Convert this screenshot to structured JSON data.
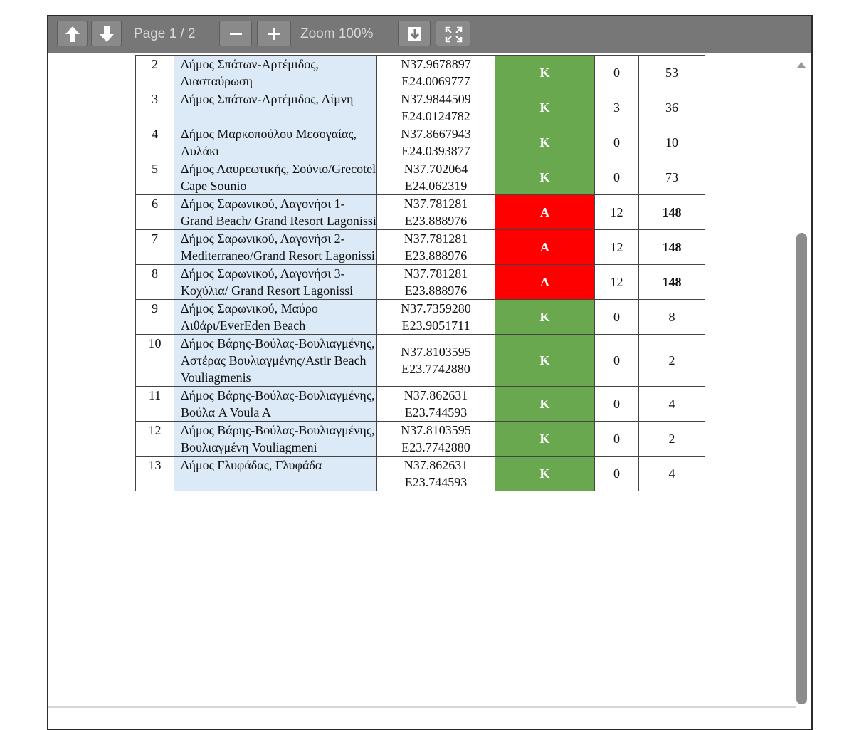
{
  "toolbar": {
    "page_label": "Page 1 / 2",
    "zoom_label": "Zoom 100%"
  },
  "table": {
    "rows": [
      {
        "num": 2,
        "name": "Δήμος Σπάτων-Αρτέμιδος, Διασταύρωση",
        "coords": [
          "N37.9678897",
          "E24.0069777"
        ],
        "status": "Κ",
        "color": "#6aa84f",
        "count": 0,
        "value": 53
      },
      {
        "num": 3,
        "name": "Δήμος Σπάτων-Αρτέμιδος, Λίμνη",
        "coords": [
          "N37.9844509",
          "E24.0124782"
        ],
        "status": "Κ",
        "color": "#6aa84f",
        "count": 3,
        "value": 36
      },
      {
        "num": 4,
        "name": "Δήμος Μαρκοπούλου Μεσογαίας, Αυλάκι",
        "coords": [
          "N37.8667943",
          "E24.0393877"
        ],
        "status": "Κ",
        "color": "#6aa84f",
        "count": 0,
        "value": 10
      },
      {
        "num": 5,
        "name": "Δήμος Λαυρεωτικής, Σούνιο/Grecotel Cape Sounio",
        "coords": [
          "N37.702064",
          "E24.062319"
        ],
        "status": "Κ",
        "color": "#6aa84f",
        "count": 0,
        "value": 73
      },
      {
        "num": 6,
        "name": "Δήμος Σαρωνικού, Λαγονήσι 1-Grand Beach/ Grand Resort Lagonissi",
        "coords": [
          "N37.781281",
          "E23.888976"
        ],
        "status": "Α",
        "color": "#ff0000",
        "count": 12,
        "value": 148,
        "bold": true
      },
      {
        "num": 7,
        "name": "Δήμος Σαρωνικού, Λαγονήσι 2-Mediterraneo/Grand Resort Lagonissi",
        "coords": [
          "N37.781281",
          "E23.888976"
        ],
        "status": "Α",
        "color": "#ff0000",
        "count": 12,
        "value": 148,
        "bold": true
      },
      {
        "num": 8,
        "name": "Δήμος Σαρωνικού, Λαγονήσι 3-Κοχύλια/ Grand Resort Lagonissi",
        "coords": [
          "N37.781281",
          "E23.888976"
        ],
        "status": "Α",
        "color": "#ff0000",
        "count": 12,
        "value": 148,
        "bold": true
      },
      {
        "num": 9,
        "name": "Δήμος Σαρωνικού, Μαύρο Λιθάρι/EverEden Beach",
        "coords": [
          "N37.7359280",
          "E23.9051711"
        ],
        "status": "Κ",
        "color": "#6aa84f",
        "count": 0,
        "value": 8
      },
      {
        "num": 10,
        "name": "Δήμος Βάρης-Βούλας-Βουλιαγμένης, Αστέρας Βουλιαγμένης/Astir Beach Vouliagmenis",
        "coords": [
          "N37.8103595",
          "E23.7742880"
        ],
        "status": "Κ",
        "color": "#6aa84f",
        "count": 0,
        "value": 2
      },
      {
        "num": 11,
        "name": "Δήμος Βάρης-Βούλας-Βουλιαγμένης, Βούλα A Voula A",
        "coords": [
          "N37.862631",
          "E23.744593"
        ],
        "status": "Κ",
        "color": "#6aa84f",
        "count": 0,
        "value": 4
      },
      {
        "num": 12,
        "name": "Δήμος Βάρης-Βούλας-Βουλιαγμένης, Βουλιαγμένη Vouliagmeni",
        "coords": [
          "N37.8103595",
          "E23.7742880"
        ],
        "status": "Κ",
        "color": "#6aa84f",
        "count": 0,
        "value": 2
      },
      {
        "num": 13,
        "name": "Δήμος Γλυφάδας, Γλυφάδα",
        "coords": [
          "N37.862631",
          "E23.744593"
        ],
        "status": "Κ",
        "color": "#6aa84f",
        "count": 0,
        "value": 4
      }
    ]
  }
}
